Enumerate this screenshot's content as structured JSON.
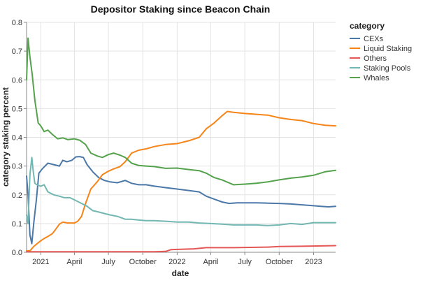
{
  "chart_data": {
    "type": "line",
    "title": "Depositor Staking since Beacon Chain",
    "xlabel": "date",
    "ylabel": "category staking percent",
    "ylim": [
      0,
      0.8
    ],
    "y_ticks": [
      0,
      0.1,
      0.2,
      0.3,
      0.4,
      0.5,
      0.6,
      0.7,
      0.8
    ],
    "y_tick_labels": [
      "0.0",
      "0.1",
      "0.2",
      "0.3",
      "0.4",
      "0.5",
      "0.6",
      "0.7",
      "0.8"
    ],
    "x_domain": [
      "2020-11-24",
      "2023-03-01"
    ],
    "x_ticks": [
      {
        "date": "2021-01-01",
        "label": "2021"
      },
      {
        "date": "2021-04-01",
        "label": "April"
      },
      {
        "date": "2021-07-01",
        "label": "July"
      },
      {
        "date": "2021-10-01",
        "label": "October"
      },
      {
        "date": "2022-01-01",
        "label": "2022"
      },
      {
        "date": "2022-04-01",
        "label": "April"
      },
      {
        "date": "2022-07-01",
        "label": "July"
      },
      {
        "date": "2022-10-01",
        "label": "October"
      },
      {
        "date": "2023-01-01",
        "label": "2023"
      }
    ],
    "grid": true,
    "legend": {
      "title": "category",
      "position": "right"
    },
    "series": [
      {
        "name": "CEXs",
        "color": "#4c78a8",
        "x": [
          "2020-11-24",
          "2020-11-28",
          "2020-12-03",
          "2020-12-08",
          "2020-12-13",
          "2020-12-20",
          "2020-12-27",
          "2021-01-05",
          "2021-01-20",
          "2021-02-05",
          "2021-02-20",
          "2021-03-01",
          "2021-03-12",
          "2021-03-25",
          "2021-04-05",
          "2021-04-15",
          "2021-04-25",
          "2021-05-05",
          "2021-05-20",
          "2021-06-05",
          "2021-06-20",
          "2021-07-05",
          "2021-07-25",
          "2021-08-15",
          "2021-09-01",
          "2021-09-20",
          "2021-10-10",
          "2021-11-01",
          "2021-12-01",
          "2022-01-01",
          "2022-02-01",
          "2022-03-01",
          "2022-03-20",
          "2022-04-10",
          "2022-05-01",
          "2022-05-20",
          "2022-06-10",
          "2022-07-01",
          "2022-08-01",
          "2022-09-01",
          "2022-10-01",
          "2022-11-01",
          "2022-12-01",
          "2023-01-01",
          "2023-01-20",
          "2023-02-10",
          "2023-03-01"
        ],
        "y": [
          0.265,
          0.2,
          0.06,
          0.03,
          0.1,
          0.18,
          0.275,
          0.29,
          0.31,
          0.305,
          0.3,
          0.32,
          0.315,
          0.32,
          0.332,
          0.333,
          0.33,
          0.305,
          0.28,
          0.26,
          0.25,
          0.245,
          0.242,
          0.25,
          0.24,
          0.235,
          0.235,
          0.23,
          0.225,
          0.22,
          0.215,
          0.21,
          0.195,
          0.185,
          0.175,
          0.17,
          0.172,
          0.172,
          0.172,
          0.171,
          0.17,
          0.168,
          0.165,
          0.162,
          0.16,
          0.158,
          0.16
        ]
      },
      {
        "name": "Liquid Staking",
        "color": "#f58518",
        "x": [
          "2020-11-24",
          "2020-12-03",
          "2020-12-13",
          "2020-12-22",
          "2021-01-01",
          "2021-01-10",
          "2021-01-20",
          "2021-02-01",
          "2021-02-10",
          "2021-02-20",
          "2021-03-01",
          "2021-03-15",
          "2021-04-01",
          "2021-04-10",
          "2021-04-20",
          "2021-05-01",
          "2021-05-15",
          "2021-06-01",
          "2021-06-15",
          "2021-07-01",
          "2021-07-15",
          "2021-08-01",
          "2021-08-15",
          "2021-09-01",
          "2021-09-20",
          "2021-10-10",
          "2021-11-01",
          "2021-12-01",
          "2022-01-01",
          "2022-02-01",
          "2022-03-01",
          "2022-03-20",
          "2022-04-10",
          "2022-05-01",
          "2022-05-15",
          "2022-06-01",
          "2022-07-01",
          "2022-08-01",
          "2022-09-01",
          "2022-10-01",
          "2022-11-01",
          "2022-12-01",
          "2023-01-01",
          "2023-02-01",
          "2023-03-01"
        ],
        "y": [
          0.005,
          0.005,
          0.02,
          0.03,
          0.04,
          0.048,
          0.055,
          0.065,
          0.08,
          0.098,
          0.105,
          0.102,
          0.102,
          0.108,
          0.125,
          0.17,
          0.22,
          0.245,
          0.27,
          0.282,
          0.29,
          0.298,
          0.315,
          0.345,
          0.355,
          0.36,
          0.368,
          0.375,
          0.378,
          0.388,
          0.4,
          0.43,
          0.45,
          0.475,
          0.49,
          0.487,
          0.483,
          0.48,
          0.477,
          0.468,
          0.462,
          0.458,
          0.448,
          0.442,
          0.44
        ]
      },
      {
        "name": "Others",
        "color": "#e45756",
        "x": [
          "2020-11-24",
          "2021-03-01",
          "2021-07-01",
          "2021-11-01",
          "2021-12-01",
          "2021-12-15",
          "2022-01-01",
          "2022-02-15",
          "2022-03-20",
          "2022-06-01",
          "2022-09-01",
          "2022-10-01",
          "2022-12-01",
          "2023-03-01"
        ],
        "y": [
          0.002,
          0.002,
          0.002,
          0.002,
          0.003,
          0.009,
          0.01,
          0.012,
          0.016,
          0.016,
          0.018,
          0.02,
          0.021,
          0.023
        ]
      },
      {
        "name": "Staking Pools",
        "color": "#72b7b2",
        "x": [
          "2020-11-24",
          "2020-11-28",
          "2020-12-03",
          "2020-12-08",
          "2020-12-12",
          "2020-12-16",
          "2020-12-22",
          "2021-01-01",
          "2021-01-10",
          "2021-01-20",
          "2021-02-05",
          "2021-02-20",
          "2021-03-05",
          "2021-03-20",
          "2021-04-05",
          "2021-04-20",
          "2021-05-05",
          "2021-05-20",
          "2021-06-05",
          "2021-06-20",
          "2021-07-05",
          "2021-07-25",
          "2021-08-15",
          "2021-09-01",
          "2021-09-20",
          "2021-10-10",
          "2021-11-01",
          "2021-12-01",
          "2022-01-01",
          "2022-02-01",
          "2022-03-01",
          "2022-04-01",
          "2022-05-01",
          "2022-06-01",
          "2022-07-01",
          "2022-08-01",
          "2022-09-01",
          "2022-10-01",
          "2022-11-01",
          "2022-12-01",
          "2023-01-01",
          "2023-02-01",
          "2023-03-01"
        ],
        "y": [
          0.13,
          0.1,
          0.27,
          0.33,
          0.28,
          0.24,
          0.235,
          0.23,
          0.235,
          0.21,
          0.2,
          0.195,
          0.19,
          0.19,
          0.18,
          0.17,
          0.16,
          0.145,
          0.14,
          0.135,
          0.13,
          0.125,
          0.115,
          0.115,
          0.112,
          0.11,
          0.11,
          0.108,
          0.105,
          0.105,
          0.102,
          0.1,
          0.098,
          0.095,
          0.095,
          0.095,
          0.093,
          0.095,
          0.1,
          0.097,
          0.103,
          0.103,
          0.103
        ]
      },
      {
        "name": "Whales",
        "color": "#54a24b",
        "x": [
          "2020-11-24",
          "2020-11-28",
          "2020-12-03",
          "2020-12-09",
          "2020-12-16",
          "2020-12-25",
          "2021-01-01",
          "2021-01-10",
          "2021-01-20",
          "2021-02-01",
          "2021-02-15",
          "2021-03-01",
          "2021-03-15",
          "2021-04-01",
          "2021-04-15",
          "2021-05-01",
          "2021-05-15",
          "2021-06-01",
          "2021-06-15",
          "2021-07-01",
          "2021-07-15",
          "2021-08-01",
          "2021-08-15",
          "2021-09-01",
          "2021-09-20",
          "2021-10-10",
          "2021-11-01",
          "2021-12-01",
          "2022-01-01",
          "2022-02-01",
          "2022-03-01",
          "2022-03-20",
          "2022-04-10",
          "2022-05-01",
          "2022-06-01",
          "2022-07-01",
          "2022-08-01",
          "2022-09-01",
          "2022-10-01",
          "2022-11-01",
          "2022-12-01",
          "2023-01-01",
          "2023-02-01",
          "2023-03-01"
        ],
        "y": [
          0.6,
          0.745,
          0.68,
          0.62,
          0.53,
          0.45,
          0.44,
          0.42,
          0.425,
          0.41,
          0.395,
          0.398,
          0.392,
          0.395,
          0.39,
          0.375,
          0.345,
          0.335,
          0.33,
          0.34,
          0.345,
          0.338,
          0.33,
          0.31,
          0.302,
          0.3,
          0.298,
          0.292,
          0.293,
          0.288,
          0.284,
          0.275,
          0.26,
          0.252,
          0.235,
          0.237,
          0.24,
          0.245,
          0.252,
          0.258,
          0.262,
          0.268,
          0.28,
          0.285
        ]
      }
    ]
  }
}
